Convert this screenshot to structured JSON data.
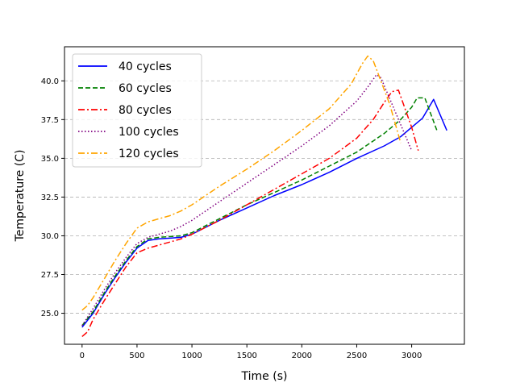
{
  "chart_data": {
    "type": "line",
    "title": "",
    "xlabel": "Time (s)",
    "ylabel": "Temperature (C)",
    "xlim": [
      -160,
      3480
    ],
    "ylim": [
      23.0,
      42.2
    ],
    "xticks": [
      0,
      500,
      1000,
      1500,
      2000,
      2500,
      3000
    ],
    "yticks": [
      25.0,
      27.5,
      30.0,
      32.5,
      35.0,
      37.5,
      40.0
    ],
    "xtick_labels": [
      "0",
      "500",
      "1000",
      "1500",
      "2000",
      "2500",
      "3000"
    ],
    "ytick_labels": [
      "25.0",
      "27.5",
      "30.0",
      "32.5",
      "35.0",
      "37.5",
      "40.0"
    ],
    "grid": "y-dashed",
    "legend_position": "top-left",
    "series": [
      {
        "name": "40 cycles",
        "color": "#0000ff",
        "dash": "solid",
        "x": [
          0,
          100,
          200,
          300,
          400,
          500,
          600,
          700,
          800,
          900,
          1000,
          1250,
          1500,
          1750,
          2000,
          2250,
          2500,
          2750,
          2900,
          3000,
          3100,
          3200,
          3320
        ],
        "y": [
          24.1,
          25.0,
          26.2,
          27.3,
          28.3,
          29.2,
          29.7,
          29.8,
          29.85,
          29.9,
          30.1,
          31.0,
          31.8,
          32.6,
          33.3,
          34.1,
          35.0,
          35.8,
          36.4,
          37.0,
          37.6,
          38.8,
          36.8
        ]
      },
      {
        "name": "60 cycles",
        "color": "#008000",
        "dash": "dashed",
        "x": [
          0,
          100,
          200,
          300,
          400,
          500,
          600,
          700,
          800,
          900,
          1000,
          1250,
          1500,
          1750,
          2000,
          2250,
          2500,
          2750,
          2900,
          3000,
          3050,
          3120,
          3230
        ],
        "y": [
          24.2,
          25.1,
          26.3,
          27.4,
          28.4,
          29.3,
          29.8,
          29.9,
          29.95,
          30.0,
          30.2,
          31.1,
          32.0,
          32.8,
          33.6,
          34.5,
          35.4,
          36.6,
          37.5,
          38.3,
          38.9,
          38.9,
          36.8
        ]
      },
      {
        "name": "80 cycles",
        "color": "#ff0000",
        "dash": "dashdot",
        "x": [
          0,
          50,
          100,
          200,
          300,
          400,
          500,
          600,
          700,
          800,
          900,
          1000,
          1250,
          1500,
          1750,
          2000,
          2250,
          2500,
          2650,
          2750,
          2820,
          2880,
          3000,
          3060
        ],
        "y": [
          23.5,
          23.8,
          24.6,
          25.8,
          26.9,
          28.0,
          28.9,
          29.2,
          29.4,
          29.6,
          29.8,
          30.1,
          31.0,
          32.0,
          33.0,
          34.0,
          35.0,
          36.3,
          37.5,
          38.6,
          39.3,
          39.4,
          37.0,
          35.5
        ]
      },
      {
        "name": "100 cycles",
        "color": "#800080",
        "dash": "dotted",
        "x": [
          0,
          100,
          200,
          300,
          400,
          500,
          600,
          700,
          800,
          900,
          1000,
          1250,
          1500,
          1750,
          2000,
          2250,
          2500,
          2600,
          2680,
          2720,
          3000
        ],
        "y": [
          24.2,
          25.3,
          26.5,
          27.6,
          28.6,
          29.5,
          29.9,
          30.1,
          30.3,
          30.6,
          31.0,
          32.2,
          33.4,
          34.6,
          35.8,
          37.1,
          38.7,
          39.6,
          40.4,
          40.2,
          35.5
        ]
      },
      {
        "name": "120 cycles",
        "color": "#ffa500",
        "dash": "dashdot",
        "x": [
          0,
          50,
          100,
          200,
          300,
          400,
          500,
          600,
          700,
          800,
          900,
          1000,
          1250,
          1500,
          1750,
          2000,
          2250,
          2450,
          2550,
          2600,
          2650,
          2800,
          2900
        ],
        "y": [
          25.2,
          25.5,
          26.0,
          27.2,
          28.4,
          29.5,
          30.5,
          30.9,
          31.1,
          31.3,
          31.6,
          32.0,
          33.2,
          34.3,
          35.5,
          36.8,
          38.2,
          39.8,
          41.1,
          41.6,
          41.3,
          38.5,
          36.0
        ]
      }
    ]
  }
}
